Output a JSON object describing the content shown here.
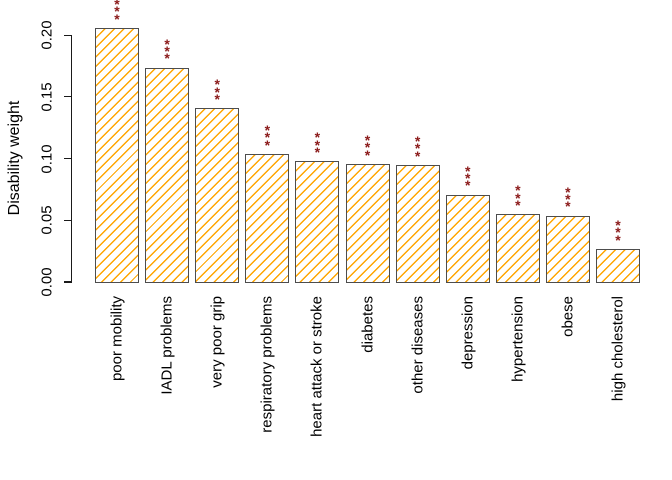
{
  "figure": {
    "background": "#ffffff"
  },
  "chart_data": {
    "type": "bar",
    "ylabel": "Disability weight",
    "categories": [
      "poor mobility",
      "IADL problems",
      "very poor grip",
      "respiratory problems",
      "heart attack or stroke",
      "diabetes",
      "other diseases",
      "depression",
      "hypertension",
      "obese",
      "high cholesterol"
    ],
    "values": [
      0.205,
      0.173,
      0.14,
      0.103,
      0.097,
      0.095,
      0.094,
      0.07,
      0.054,
      0.053,
      0.026
    ],
    "significance": [
      "***",
      "***",
      "***",
      "***",
      "***",
      "***",
      "***",
      "***",
      "***",
      "***",
      "***"
    ],
    "yticks": [
      0,
      0.05,
      0.1,
      0.15,
      0.2
    ],
    "ytick_labels": [
      "0.00",
      "0.05",
      "0.10",
      "0.15",
      "0.20"
    ],
    "ylim": [
      0,
      0.21
    ],
    "grid": false,
    "legend": false,
    "bar_fill_color": "#ffffff",
    "bar_hatch_color": "#FFA500",
    "bar_border_color": "#4d4d4d",
    "star_color": "#8B1A1A",
    "axis_color": "#1a1a1a"
  }
}
